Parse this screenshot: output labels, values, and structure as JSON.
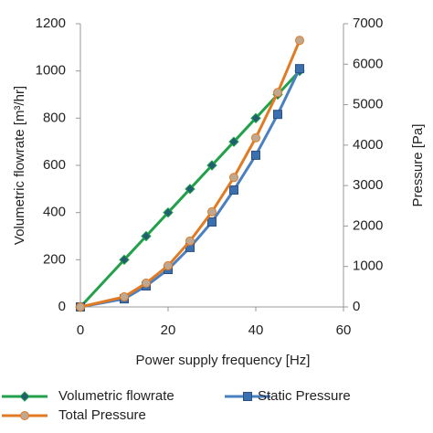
{
  "chart_data": {
    "type": "line",
    "x": [
      0,
      10,
      15,
      20,
      25,
      30,
      35,
      40,
      45,
      50
    ],
    "xlabel": "Power supply frequency [Hz]",
    "ylabel": "Volumetric flowrate [m³/hr]",
    "y2label": "Pressure [Pa]",
    "xlim": [
      0,
      60
    ],
    "xticks": [
      0,
      20,
      40,
      60
    ],
    "ylim": [
      0,
      1200
    ],
    "yticks": [
      0,
      200,
      400,
      600,
      800,
      1000,
      1200
    ],
    "y2lim": [
      0,
      7000
    ],
    "y2ticks": [
      0,
      1000,
      2000,
      3000,
      4000,
      5000,
      6000,
      7000
    ],
    "legend": "bottom",
    "series": [
      {
        "name": "Volumetric flowrate",
        "color": "#22a04a",
        "marker": "diamond",
        "values": [
          0,
          200,
          300,
          400,
          500,
          600,
          700,
          800,
          900,
          1000
        ]
      },
      {
        "name": "Static Pressure",
        "color": "#4a7fc0",
        "marker": "square",
        "axis": "y2",
        "values": [
          0,
          200,
          520,
          925,
          1470,
          2100,
          2890,
          3750,
          4760,
          5890
        ]
      },
      {
        "name": "Total Pressure",
        "color": "#e07b24",
        "marker": "circle",
        "axis": "y2",
        "values": [
          0,
          250,
          590,
          1020,
          1630,
          2350,
          3200,
          4180,
          5300,
          6590
        ]
      }
    ]
  }
}
